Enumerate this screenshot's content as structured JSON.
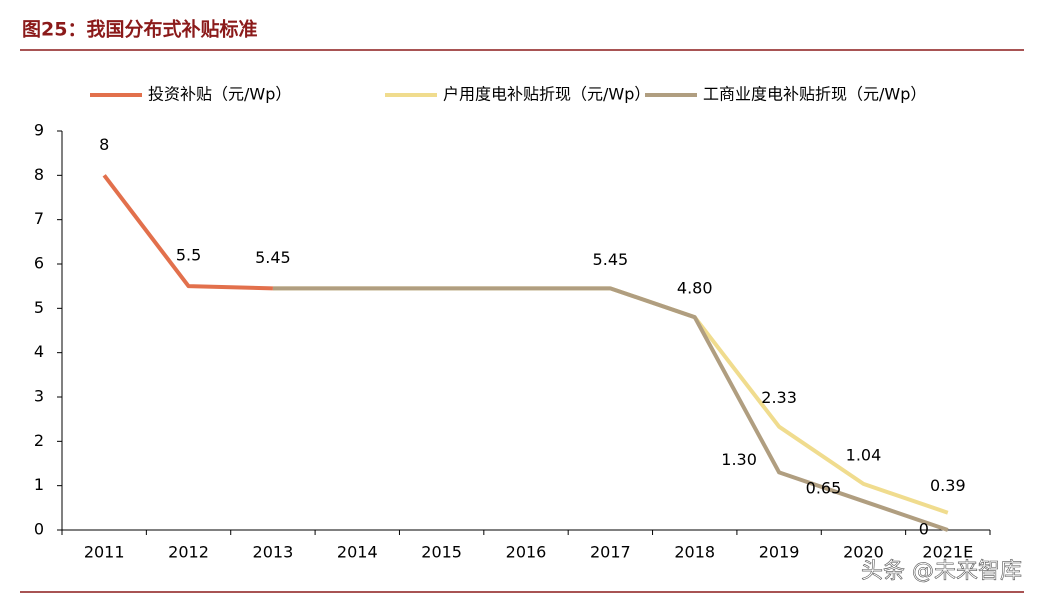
{
  "chart_data": {
    "type": "line",
    "title": "图25：我国分布式补贴标准",
    "categories": [
      "2011",
      "2012",
      "2013",
      "2014",
      "2015",
      "2016",
      "2017",
      "2018",
      "2019",
      "2020",
      "2021E"
    ],
    "series": [
      {
        "name": "投资补贴（元/Wp）",
        "color": "#e2704c",
        "values": [
          8,
          5.5,
          5.45,
          null,
          null,
          null,
          null,
          null,
          null,
          null,
          null
        ],
        "value_labels": [
          "8",
          "5.5",
          "5.45",
          null,
          null,
          null,
          null,
          null,
          null,
          null,
          null
        ]
      },
      {
        "name": "户用度电补贴折现（元/Wp）",
        "color": "#f0dc8e",
        "values": [
          null,
          null,
          5.45,
          5.45,
          5.45,
          5.45,
          5.45,
          4.8,
          2.33,
          1.04,
          0.39
        ],
        "value_labels": [
          null,
          null,
          null,
          null,
          null,
          null,
          "5.45",
          "4.80",
          "2.33",
          "1.04",
          "0.39"
        ]
      },
      {
        "name": "工商业度电补贴折现（元/Wp）",
        "color": "#b09e80",
        "values": [
          null,
          null,
          5.45,
          5.45,
          5.45,
          5.45,
          5.45,
          4.8,
          1.3,
          0.65,
          0
        ],
        "value_labels": [
          null,
          null,
          null,
          null,
          null,
          null,
          null,
          null,
          "1.30",
          "0.65",
          "0"
        ]
      }
    ],
    "ylim": [
      0,
      9
    ],
    "yticks": [
      0,
      1,
      2,
      3,
      4,
      5,
      6,
      7,
      8,
      9
    ],
    "grid": false,
    "legend": "top",
    "watermark": "头条 @未来智库"
  }
}
